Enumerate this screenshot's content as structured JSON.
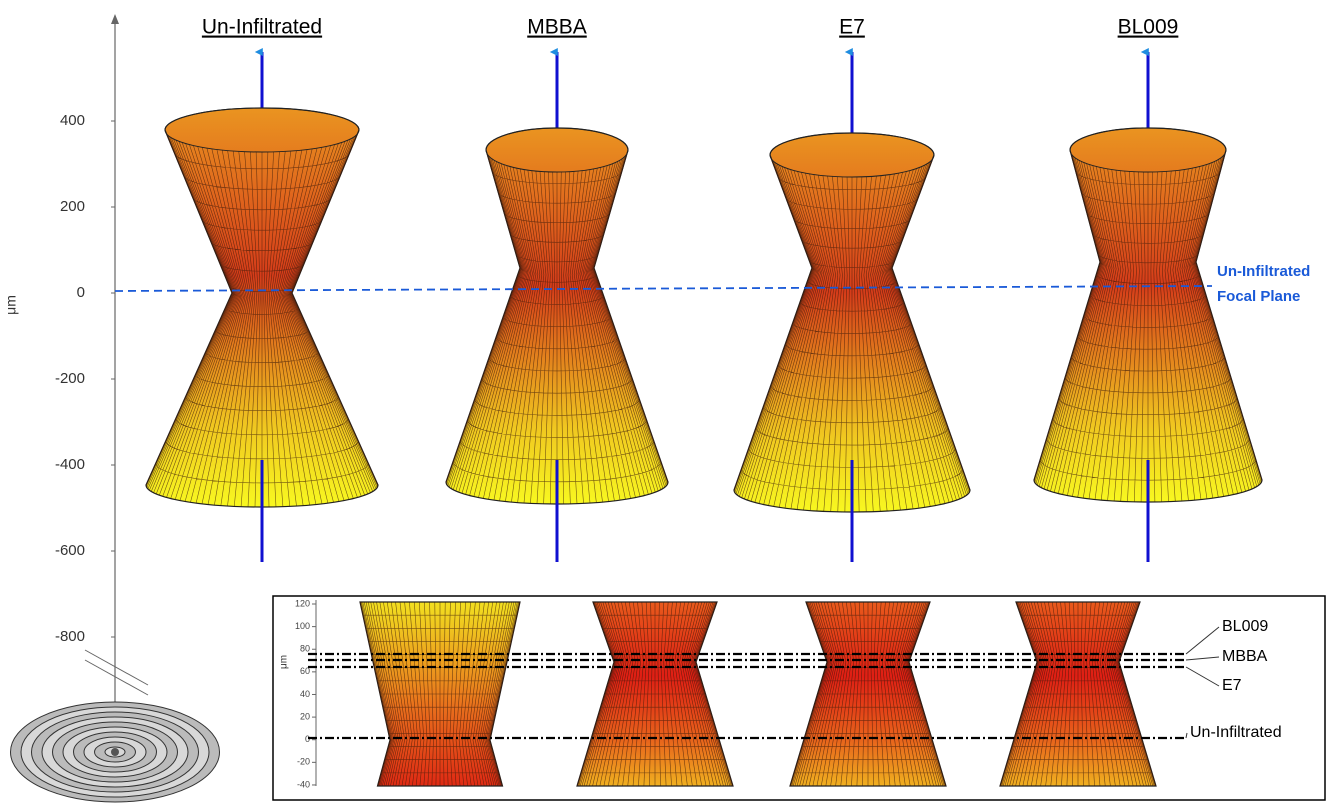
{
  "main_axis": {
    "label": "μm",
    "ticks": [
      400,
      200,
      0,
      -200,
      -400,
      -600,
      -800
    ]
  },
  "columns": [
    "Un-Infiltrated",
    "MBBA",
    "E7",
    "BL009"
  ],
  "focal_plane_label": [
    "Un-Infiltrated",
    "Focal Plane"
  ],
  "inset": {
    "axis_label": "μm",
    "ticks": [
      120,
      100,
      80,
      60,
      40,
      20,
      0,
      -20,
      -40
    ],
    "lines": [
      "BL009",
      "MBBA",
      "E7",
      "Un-Infiltrated"
    ]
  }
}
